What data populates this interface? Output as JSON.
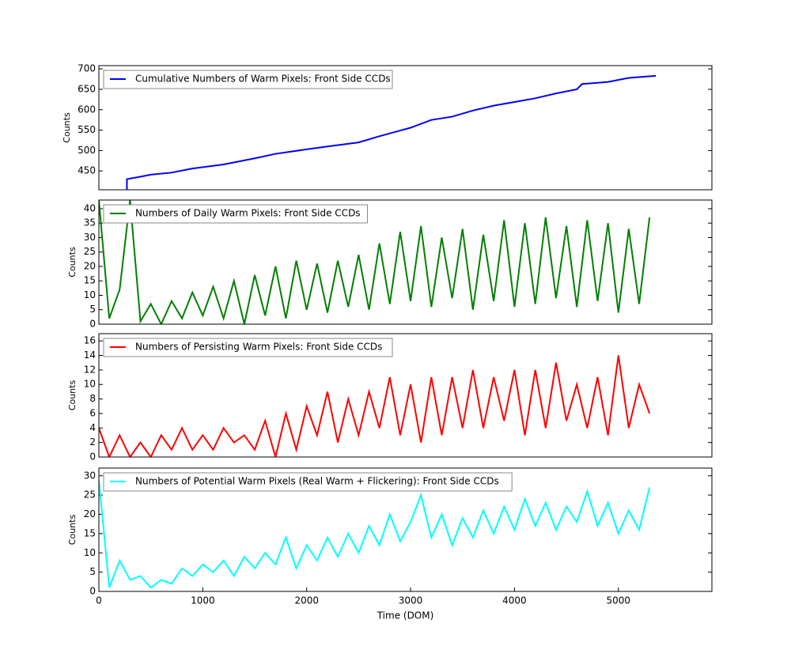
{
  "chart_data": [
    {
      "type": "line",
      "ylabel": "Counts",
      "xlim": [
        0,
        5900
      ],
      "ylim": [
        404,
        708
      ],
      "yticks": [
        450,
        500,
        550,
        600,
        650,
        700
      ],
      "x": [
        270,
        270,
        400,
        500,
        700,
        900,
        1200,
        1500,
        1700,
        2000,
        2200,
        2500,
        2700,
        3000,
        3200,
        3400,
        3600,
        3800,
        4000,
        4200,
        4400,
        4600,
        4650,
        4900,
        5100,
        5360
      ],
      "series": [
        {
          "name": "Cumulative Numbers of Warm Pixels: Front Side CCDs",
          "color": "#0000ff",
          "values": [
            404,
            430,
            436,
            441,
            446,
            456,
            466,
            481,
            492,
            503,
            510,
            520,
            535,
            556,
            575,
            583,
            598,
            610,
            619,
            628,
            640,
            650,
            663,
            668,
            678,
            683
          ]
        }
      ]
    },
    {
      "type": "line",
      "ylabel": "Counts",
      "xlim": [
        0,
        5900
      ],
      "ylim": [
        0,
        43
      ],
      "yticks": [
        0,
        5,
        10,
        15,
        20,
        25,
        30,
        35,
        40
      ],
      "x": [
        0,
        100,
        200,
        300,
        400,
        500,
        600,
        700,
        800,
        900,
        1000,
        1100,
        1200,
        1300,
        1400,
        1500,
        1600,
        1700,
        1800,
        1900,
        2000,
        2100,
        2200,
        2300,
        2400,
        2500,
        2600,
        2700,
        2800,
        2900,
        3000,
        3100,
        3200,
        3300,
        3400,
        3500,
        3600,
        3700,
        3800,
        3900,
        4000,
        4100,
        4200,
        4300,
        4400,
        4500,
        4600,
        4700,
        4800,
        4900,
        5000,
        5100,
        5200,
        5300
      ],
      "series": [
        {
          "name": "Numbers of Daily Warm Pixels: Front Side CCDs",
          "color": "#008000",
          "values": [
            43,
            2,
            12,
            43,
            1,
            7,
            0,
            8,
            2,
            11,
            3,
            13,
            2,
            15,
            0,
            17,
            3,
            20,
            2,
            22,
            5,
            21,
            4,
            22,
            6,
            24,
            5,
            28,
            7,
            32,
            8,
            34,
            6,
            30,
            9,
            33,
            5,
            31,
            8,
            36,
            6,
            35,
            7,
            37,
            9,
            34,
            6,
            36,
            8,
            35,
            4,
            33,
            7,
            37
          ]
        }
      ]
    },
    {
      "type": "line",
      "ylabel": "Counts",
      "xlim": [
        0,
        5900
      ],
      "ylim": [
        0,
        17
      ],
      "yticks": [
        0,
        2,
        4,
        6,
        8,
        10,
        12,
        14,
        16
      ],
      "x": [
        0,
        100,
        200,
        300,
        400,
        500,
        600,
        700,
        800,
        900,
        1000,
        1100,
        1200,
        1300,
        1400,
        1500,
        1600,
        1700,
        1800,
        1900,
        2000,
        2100,
        2200,
        2300,
        2400,
        2500,
        2600,
        2700,
        2800,
        2900,
        3000,
        3100,
        3200,
        3300,
        3400,
        3500,
        3600,
        3700,
        3800,
        3900,
        4000,
        4100,
        4200,
        4300,
        4400,
        4500,
        4600,
        4700,
        4800,
        4900,
        5000,
        5100,
        5200,
        5300
      ],
      "series": [
        {
          "name": "Numbers of Persisting Warm Pixels: Front Side CCDs",
          "color": "#ff0000",
          "values": [
            4,
            0,
            3,
            0,
            2,
            0,
            3,
            1,
            4,
            1,
            3,
            1,
            4,
            2,
            3,
            1,
            5,
            0,
            6,
            1,
            7,
            3,
            9,
            2,
            8,
            3,
            9,
            4,
            11,
            3,
            10,
            2,
            11,
            3,
            11,
            4,
            12,
            4,
            11,
            5,
            12,
            3,
            12,
            4,
            13,
            5,
            10,
            4,
            11,
            3,
            14,
            4,
            10,
            6
          ]
        }
      ]
    },
    {
      "type": "line",
      "ylabel": "Counts",
      "xlabel": "Time (DOM)",
      "xlim": [
        0,
        5900
      ],
      "xticks": [
        0,
        1000,
        2000,
        3000,
        4000,
        5000
      ],
      "ylim": [
        0,
        32
      ],
      "yticks": [
        0,
        5,
        10,
        15,
        20,
        25,
        30
      ],
      "x": [
        0,
        100,
        200,
        300,
        400,
        500,
        600,
        700,
        800,
        900,
        1000,
        1100,
        1200,
        1300,
        1400,
        1500,
        1600,
        1700,
        1800,
        1900,
        2000,
        2100,
        2200,
        2300,
        2400,
        2500,
        2600,
        2700,
        2800,
        2900,
        3000,
        3100,
        3200,
        3300,
        3400,
        3500,
        3600,
        3700,
        3800,
        3900,
        4000,
        4100,
        4200,
        4300,
        4400,
        4500,
        4600,
        4700,
        4800,
        4900,
        5000,
        5100,
        5200,
        5300
      ],
      "series": [
        {
          "name": "Numbers of Potential Warm Pixels (Real Warm + Flickering): Front Side CCDs",
          "color": "#00ffff",
          "values": [
            29,
            1,
            8,
            3,
            4,
            1,
            3,
            2,
            6,
            4,
            7,
            5,
            8,
            4,
            9,
            6,
            10,
            7,
            14,
            6,
            12,
            8,
            14,
            9,
            15,
            10,
            17,
            12,
            20,
            13,
            18,
            25,
            14,
            20,
            12,
            19,
            14,
            21,
            15,
            22,
            16,
            24,
            17,
            23,
            16,
            22,
            18,
            26,
            17,
            23,
            15,
            21,
            16,
            27
          ]
        }
      ]
    }
  ]
}
